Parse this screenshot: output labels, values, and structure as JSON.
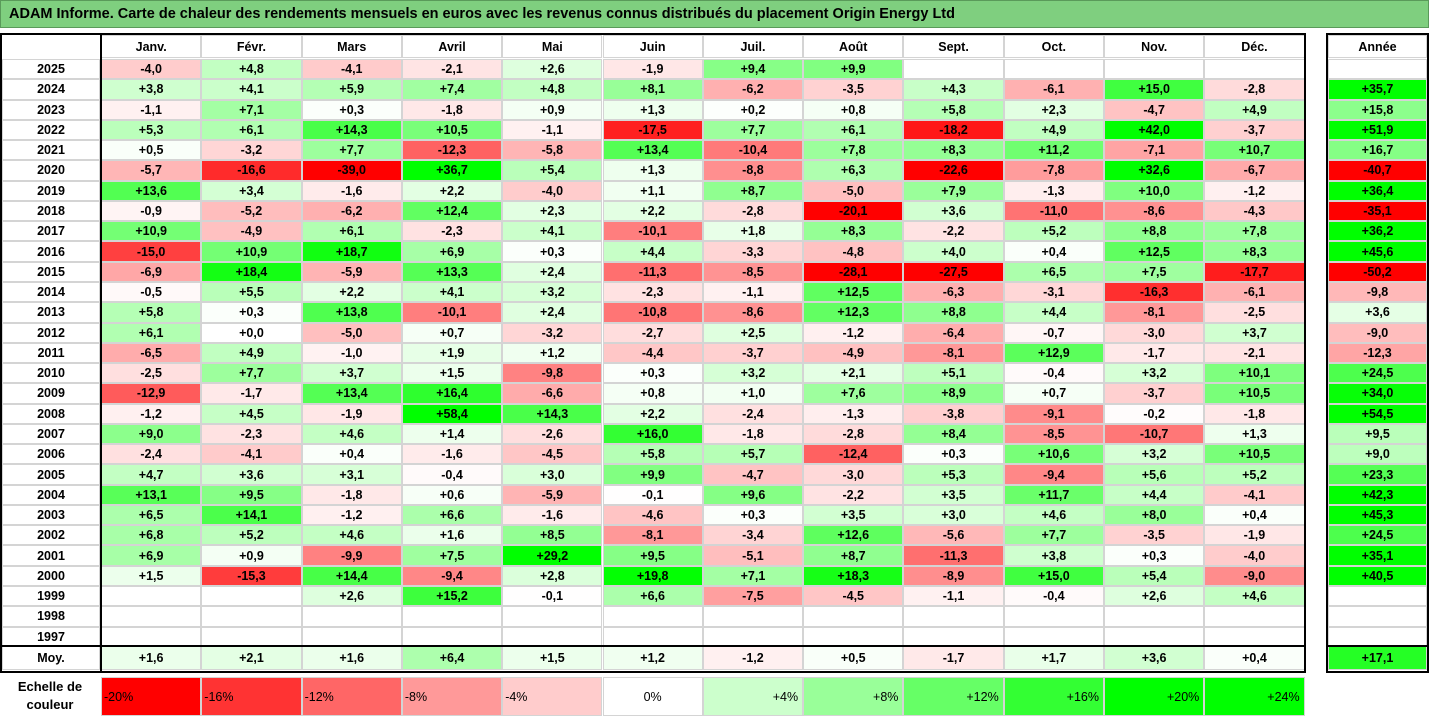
{
  "title": "ADAM Informe. Carte de chaleur des rendements mensuels en euros avec les revenus connus distribués du placement Origin Energy Ltd",
  "chart_data": {
    "type": "heatmap",
    "title": "ADAM Informe. Carte de chaleur des rendements mensuels en euros avec les revenus connus distribués du placement Origin Energy Ltd",
    "columns": [
      "Janv.",
      "Févr.",
      "Mars",
      "Avril",
      "Mai",
      "Juin",
      "Juil.",
      "Août",
      "Sept.",
      "Oct.",
      "Nov.",
      "Déc."
    ],
    "year_header": "Année",
    "rows": [
      {
        "year": "2025",
        "values": [
          "-4,0",
          "+4,8",
          "-4,1",
          "-2,1",
          "+2,6",
          "-1,9",
          "+9,4",
          "+9,9",
          "",
          "",
          "",
          ""
        ],
        "annual": ""
      },
      {
        "year": "2024",
        "values": [
          "+3,8",
          "+4,1",
          "+5,9",
          "+7,4",
          "+4,8",
          "+8,1",
          "-6,2",
          "-3,5",
          "+4,3",
          "-6,1",
          "+15,0",
          "-2,8"
        ],
        "annual": "+35,7"
      },
      {
        "year": "2023",
        "values": [
          "-1,1",
          "+7,1",
          "+0,3",
          "-1,8",
          "+0,9",
          "+1,3",
          "+0,2",
          "+0,8",
          "+5,8",
          "+2,3",
          "-4,7",
          "+4,9"
        ],
        "annual": "+15,8"
      },
      {
        "year": "2022",
        "values": [
          "+5,3",
          "+6,1",
          "+14,3",
          "+10,5",
          "-1,1",
          "-17,5",
          "+7,7",
          "+6,1",
          "-18,2",
          "+4,9",
          "+42,0",
          "-3,7"
        ],
        "annual": "+51,9"
      },
      {
        "year": "2021",
        "values": [
          "+0,5",
          "-3,2",
          "+7,7",
          "-12,3",
          "-5,8",
          "+13,4",
          "-10,4",
          "+7,8",
          "+8,3",
          "+11,2",
          "-7,1",
          "+10,7"
        ],
        "annual": "+16,7"
      },
      {
        "year": "2020",
        "values": [
          "-5,7",
          "-16,6",
          "-39,0",
          "+36,7",
          "+5,4",
          "+1,3",
          "-8,8",
          "+6,3",
          "-22,6",
          "-7,8",
          "+32,6",
          "-6,7"
        ],
        "annual": "-40,7"
      },
      {
        "year": "2019",
        "values": [
          "+13,6",
          "+3,4",
          "-1,6",
          "+2,2",
          "-4,0",
          "+1,1",
          "+8,7",
          "-5,0",
          "+7,9",
          "-1,3",
          "+10,0",
          "-1,2"
        ],
        "annual": "+36,4"
      },
      {
        "year": "2018",
        "values": [
          "-0,9",
          "-5,2",
          "-6,2",
          "+12,4",
          "+2,3",
          "+2,2",
          "-2,8",
          "-20,1",
          "+3,6",
          "-11,0",
          "-8,6",
          "-4,3"
        ],
        "annual": "-35,1"
      },
      {
        "year": "2017",
        "values": [
          "+10,9",
          "-4,9",
          "+6,1",
          "-2,3",
          "+4,1",
          "-10,1",
          "+1,8",
          "+8,3",
          "-2,2",
          "+5,2",
          "+8,8",
          "+7,8"
        ],
        "annual": "+36,2"
      },
      {
        "year": "2016",
        "values": [
          "-15,0",
          "+10,9",
          "+18,7",
          "+6,9",
          "+0,3",
          "+4,4",
          "-3,3",
          "-4,8",
          "+4,0",
          "+0,4",
          "+12,5",
          "+8,3"
        ],
        "annual": "+45,6"
      },
      {
        "year": "2015",
        "values": [
          "-6,9",
          "+18,4",
          "-5,9",
          "+13,3",
          "+2,4",
          "-11,3",
          "-8,5",
          "-28,1",
          "-27,5",
          "+6,5",
          "+7,5",
          "-17,7"
        ],
        "annual": "-50,2"
      },
      {
        "year": "2014",
        "values": [
          "-0,5",
          "+5,5",
          "+2,2",
          "+4,1",
          "+3,2",
          "-2,3",
          "-1,1",
          "+12,5",
          "-6,3",
          "-3,1",
          "-16,3",
          "-6,1"
        ],
        "annual": "-9,8"
      },
      {
        "year": "2013",
        "values": [
          "+5,8",
          "+0,3",
          "+13,8",
          "-10,1",
          "+2,4",
          "-10,8",
          "-8,6",
          "+12,3",
          "+8,8",
          "+4,4",
          "-8,1",
          "-2,5"
        ],
        "annual": "+3,6"
      },
      {
        "year": "2012",
        "values": [
          "+6,1",
          "+0,0",
          "-5,0",
          "+0,7",
          "-3,2",
          "-2,7",
          "+2,5",
          "-1,2",
          "-6,4",
          "-0,7",
          "-3,0",
          "+3,7"
        ],
        "annual": "-9,0"
      },
      {
        "year": "2011",
        "values": [
          "-6,5",
          "+4,9",
          "-1,0",
          "+1,9",
          "+1,2",
          "-4,4",
          "-3,7",
          "-4,9",
          "-8,1",
          "+12,9",
          "-1,7",
          "-2,1"
        ],
        "annual": "-12,3"
      },
      {
        "year": "2010",
        "values": [
          "-2,5",
          "+7,7",
          "+3,7",
          "+1,5",
          "-9,8",
          "+0,3",
          "+3,2",
          "+2,1",
          "+5,1",
          "-0,4",
          "+3,2",
          "+10,1"
        ],
        "annual": "+24,5"
      },
      {
        "year": "2009",
        "values": [
          "-12,9",
          "-1,7",
          "+13,4",
          "+16,4",
          "-6,6",
          "+0,8",
          "+1,0",
          "+7,6",
          "+8,9",
          "+0,7",
          "-3,7",
          "+10,5"
        ],
        "annual": "+34,0"
      },
      {
        "year": "2008",
        "values": [
          "-1,2",
          "+4,5",
          "-1,9",
          "+58,4",
          "+14,3",
          "+2,2",
          "-2,4",
          "-1,3",
          "-3,8",
          "-9,1",
          "-0,2",
          "-1,8"
        ],
        "annual": "+54,5"
      },
      {
        "year": "2007",
        "values": [
          "+9,0",
          "-2,3",
          "+4,6",
          "+1,4",
          "-2,6",
          "+16,0",
          "-1,8",
          "-2,8",
          "+8,4",
          "-8,5",
          "-10,7",
          "+1,3"
        ],
        "annual": "+9,5"
      },
      {
        "year": "2006",
        "values": [
          "-2,4",
          "-4,1",
          "+0,4",
          "-1,6",
          "-4,5",
          "+5,8",
          "+5,7",
          "-12,4",
          "+0,3",
          "+10,6",
          "+3,2",
          "+10,5"
        ],
        "annual": "+9,0"
      },
      {
        "year": "2005",
        "values": [
          "+4,7",
          "+3,6",
          "+3,1",
          "-0,4",
          "+3,0",
          "+9,9",
          "-4,7",
          "-3,0",
          "+5,3",
          "-9,4",
          "+5,6",
          "+5,2"
        ],
        "annual": "+23,3"
      },
      {
        "year": "2004",
        "values": [
          "+13,1",
          "+9,5",
          "-1,8",
          "+0,6",
          "-5,9",
          "-0,1",
          "+9,6",
          "-2,2",
          "+3,5",
          "+11,7",
          "+4,4",
          "-4,1"
        ],
        "annual": "+42,3"
      },
      {
        "year": "2003",
        "values": [
          "+6,5",
          "+14,1",
          "-1,2",
          "+6,6",
          "-1,6",
          "-4,6",
          "+0,3",
          "+3,5",
          "+3,0",
          "+4,6",
          "+8,0",
          "+0,4"
        ],
        "annual": "+45,3"
      },
      {
        "year": "2002",
        "values": [
          "+6,8",
          "+5,2",
          "+4,6",
          "+1,6",
          "+8,5",
          "-8,1",
          "-3,4",
          "+12,6",
          "-5,6",
          "+7,7",
          "-3,5",
          "-1,9"
        ],
        "annual": "+24,5"
      },
      {
        "year": "2001",
        "values": [
          "+6,9",
          "+0,9",
          "-9,9",
          "+7,5",
          "+29,2",
          "+9,5",
          "-5,1",
          "+8,7",
          "-11,3",
          "+3,8",
          "+0,3",
          "-4,0"
        ],
        "annual": "+35,1"
      },
      {
        "year": "2000",
        "values": [
          "+1,5",
          "-15,3",
          "+14,4",
          "-9,4",
          "+2,8",
          "+19,8",
          "+7,1",
          "+18,3",
          "-8,9",
          "+15,0",
          "+5,4",
          "-9,0"
        ],
        "annual": "+40,5"
      },
      {
        "year": "1999",
        "values": [
          "",
          "",
          "+2,6",
          "+15,2",
          "-0,1",
          "+6,6",
          "-7,5",
          "-4,5",
          "-1,1",
          "-0,4",
          "+2,6",
          "+4,6"
        ],
        "annual": ""
      },
      {
        "year": "1998",
        "values": [
          "",
          "",
          "",
          "",
          "",
          "",
          "",
          "",
          "",
          "",
          "",
          ""
        ],
        "annual": ""
      },
      {
        "year": "1997",
        "values": [
          "",
          "",
          "",
          "",
          "",
          "",
          "",
          "",
          "",
          "",
          "",
          ""
        ],
        "annual": ""
      }
    ],
    "average": {
      "label": "Moy.",
      "values": [
        "+1,6",
        "+2,1",
        "+1,6",
        "+6,4",
        "+1,5",
        "+1,2",
        "-1,2",
        "+0,5",
        "-1,7",
        "+1,7",
        "+3,6",
        "+0,4"
      ],
      "annual": "+17,1"
    },
    "legend": {
      "label_line1": "Echelle de",
      "label_line2": "couleur",
      "items": [
        {
          "label": "-20%",
          "value": -20
        },
        {
          "label": "-16%",
          "value": -16
        },
        {
          "label": "-12%",
          "value": -12
        },
        {
          "label": "-8%",
          "value": -8
        },
        {
          "label": "-4%",
          "value": -4
        },
        {
          "label": "0%",
          "value": 0
        },
        {
          "label": "+4%",
          "value": 4
        },
        {
          "label": "+8%",
          "value": 8
        },
        {
          "label": "+12%",
          "value": 12
        },
        {
          "label": "+16%",
          "value": 16
        },
        {
          "label": "+20%",
          "value": 20
        },
        {
          "label": "+24%",
          "value": 24
        }
      ]
    },
    "colors": {
      "negative": "#ff0000",
      "positive": "#00ff00",
      "neutral": "#ffffff",
      "title_bg": "#7fcf7f"
    }
  }
}
